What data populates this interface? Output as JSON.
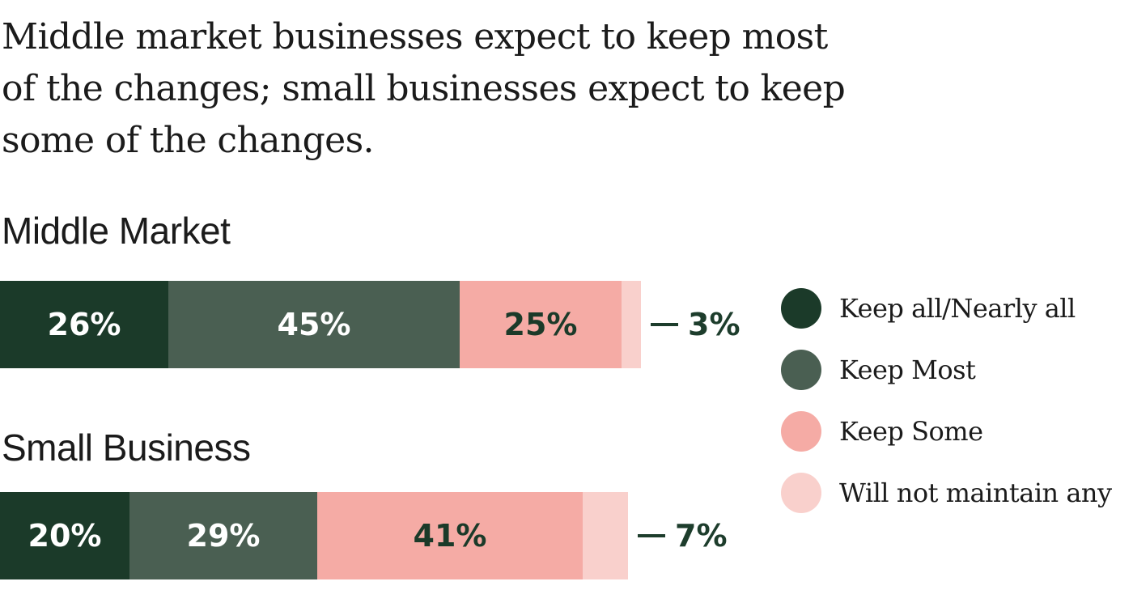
{
  "title": "Middle market businesses expect to keep most of the changes; small businesses expect to keep some of the changes.",
  "colors": {
    "keep_all": "#1b3a29",
    "keep_most": "#4a5f52",
    "keep_some": "#f5aba5",
    "will_not": "#f9d0cc",
    "label_light": "#ffffff",
    "label_dark": "#1b3a29"
  },
  "legend": [
    {
      "label": "Keep all/Nearly all",
      "color": "#1b3a29"
    },
    {
      "label": "Keep Most",
      "color": "#4a5f52"
    },
    {
      "label": "Keep Some",
      "color": "#f5aba5"
    },
    {
      "label": "Will not maintain any",
      "color": "#f9d0cc"
    }
  ],
  "chart_data": {
    "type": "bar",
    "orientation": "horizontal-stacked",
    "categories": [
      "Middle Market",
      "Small Business"
    ],
    "series": [
      {
        "name": "Keep all/Nearly all",
        "values": [
          26,
          20
        ],
        "labels": [
          "26%",
          "20%"
        ]
      },
      {
        "name": "Keep Most",
        "values": [
          45,
          29
        ],
        "labels": [
          "45%",
          "29%"
        ]
      },
      {
        "name": "Keep Some",
        "values": [
          25,
          41
        ],
        "labels": [
          "25%",
          "41%"
        ]
      },
      {
        "name": "Will not maintain any",
        "values": [
          3,
          7
        ],
        "labels": [
          "3%",
          "7%"
        ]
      }
    ],
    "title": "Middle market businesses expect to keep most of the changes; small businesses expect to keep some of the changes.",
    "legend_position": "right"
  }
}
